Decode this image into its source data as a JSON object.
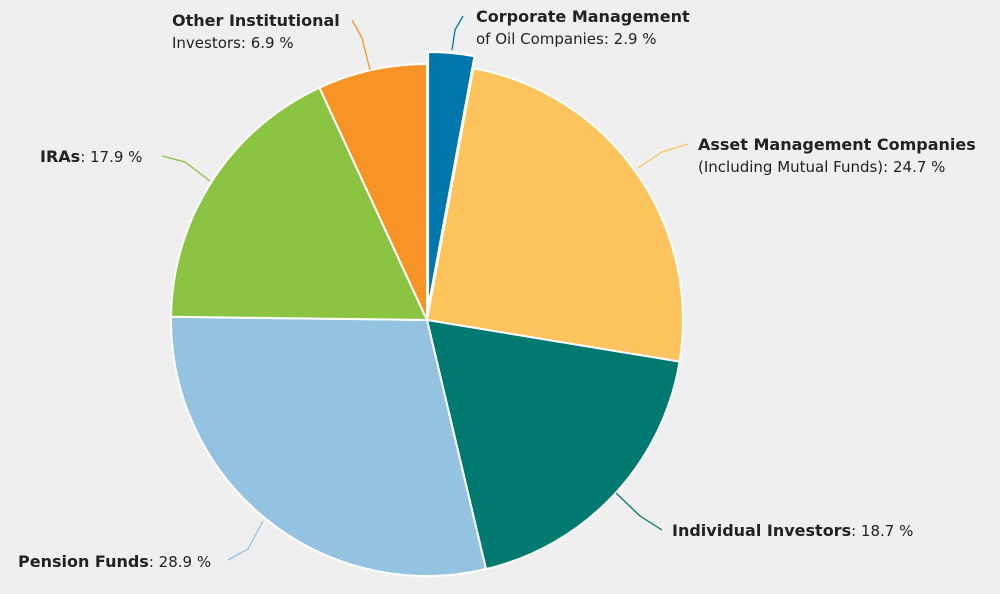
{
  "chart_data": {
    "type": "pie",
    "title": "",
    "unit": "%",
    "legend": "none",
    "slices": [
      {
        "name": "Corporate Management of Oil Companies",
        "value": 2.9,
        "display": "2.9 %",
        "color": "#0077aa",
        "label_lines": [
          "Corporate Management",
          "of Oil Companies: 2.9 %"
        ]
      },
      {
        "name": "Asset Management Companies (Including Mutual Funds)",
        "value": 24.7,
        "display": "24.7 %",
        "color": "#fdc35c",
        "label_lines": [
          "Asset Management Companies",
          "(Including Mutual Funds): 24.7 %"
        ]
      },
      {
        "name": "Individual Investors",
        "value": 18.7,
        "display": "18.7 %",
        "color": "#007a70",
        "label_lines": [
          "Individual Investors: 18.7 %"
        ]
      },
      {
        "name": "Pension Funds",
        "value": 28.9,
        "display": "28.9 %",
        "color": "#93c3e0",
        "label_lines": [
          "Pension Funds: 28.9 %"
        ]
      },
      {
        "name": "IRAs",
        "value": 17.9,
        "display": "17.9 %",
        "color": "#8bc443",
        "label_lines": [
          "IRAs: 17.9 %"
        ]
      },
      {
        "name": "Other Institutional Investors",
        "value": 6.9,
        "display": "6.9 %",
        "color": "#f79425",
        "label_lines": [
          "Other Institutional",
          "Investors: 6.9 %"
        ]
      }
    ]
  }
}
